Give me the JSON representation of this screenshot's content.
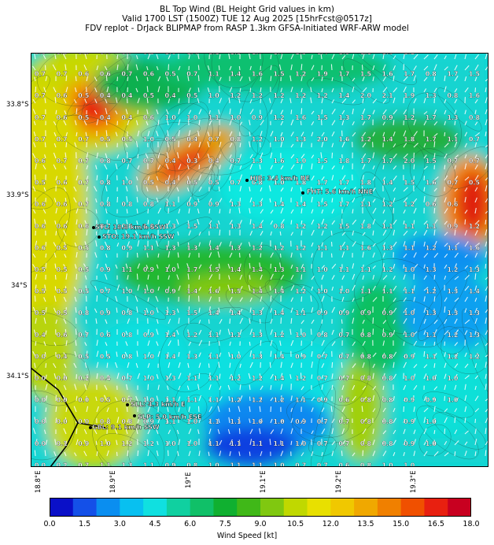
{
  "title": {
    "line1": "BL Top Wind (BL Height Grid values in km)",
    "line2": "Valid 1700 LST (1500Z) TUE 12 Aug 2025 [15hrFcst@0517z]",
    "line3": "FDV replot - DrJack BLIPMAP from RASP 1.3km GFSA-Initiated WRF-ARW model"
  },
  "y_axis": [
    "33.8°S",
    "33.9°S",
    "34°S",
    "34.1°S"
  ],
  "x_axis": [
    "18.8°E",
    "18.9°E",
    "19°E",
    "19.1°E",
    "19.2°E",
    "19.3°E"
  ],
  "stations": [
    {
      "code": "HJB",
      "label": "HJB: 3.4 km/h NE"
    },
    {
      "code": "FHT",
      "label": "FHT: 5.6 km/h NNE"
    },
    {
      "code": "STL",
      "label": "STL: 18.8 km/h SSW"
    },
    {
      "code": "STO",
      "label": "STO: 19.1 km/h SSW"
    },
    {
      "code": "SLL",
      "label": "SLL: 4.3 km/h E"
    },
    {
      "code": "SLP",
      "label": "SLP: 5.0 km/h ESE"
    },
    {
      "code": "GBL",
      "label": "GBL: 9.1 km/h SSW"
    }
  ],
  "bl_height_grid": [
    [
      0.8,
      0.8,
      0.6,
      0.4,
      0.7,
      0.8,
      1.0,
      1.4,
      1.1,
      1.3,
      1.7,
      1.7,
      1.3,
      1.4,
      1.5,
      1.1,
      1.6,
      1.2
    ],
    [
      0.7,
      0.7,
      0.6,
      0.6,
      0.7,
      0.6,
      0.5,
      0.7,
      1.1,
      1.4,
      1.6,
      1.5,
      1.2,
      1.9,
      1.7,
      1.5,
      1.6,
      1.7,
      0.8,
      1.7,
      1.5
    ],
    [
      0.7,
      0.6,
      0.5,
      0.4,
      0.4,
      0.5,
      0.4,
      0.5,
      1.0,
      1.2,
      1.2,
      1.2,
      1.2,
      1.2,
      1.4,
      2.0,
      2.1,
      1.9,
      1.3,
      0.8,
      1.6,
      1.2
    ],
    [
      0.7,
      0.6,
      0.5,
      0.4,
      0.4,
      0.6,
      1.0,
      1.0,
      1.1,
      1.0,
      0.9,
      1.2,
      1.6,
      1.5,
      1.3,
      1.7,
      0.9,
      1.2,
      1.7,
      1.3,
      0.8
    ],
    [
      0.7,
      0.7,
      0.7,
      0.5,
      0.5,
      1.0,
      0.5,
      0.4,
      0.7,
      0.8,
      1.2,
      1.0,
      1.3,
      2.0,
      1.6,
      1.2,
      1.4,
      1.8,
      1.7,
      1.1,
      0.7
    ],
    [
      0.6,
      0.7,
      0.7,
      0.8,
      0.7,
      0.7,
      0.4,
      0.3,
      0.4,
      0.7,
      1.3,
      1.6,
      1.0,
      1.5,
      1.8,
      1.7,
      1.7,
      2.0,
      1.5,
      0.7,
      0.7
    ],
    [
      0.5,
      0.6,
      0.7,
      0.8,
      1.0,
      0.5,
      0.4,
      0.5,
      0.5,
      0.7,
      0.8,
      1.0,
      1.8,
      1.7,
      1.7,
      1.8,
      1.4,
      1.5,
      1.6,
      0.7,
      0.5
    ],
    [
      0.6,
      0.6,
      0.7,
      0.8,
      0.8,
      0.8,
      1.1,
      0.9,
      0.9,
      1.3,
      1.3,
      1.4,
      1.4,
      1.5,
      1.7,
      1.1,
      1.2,
      1.2,
      0.6,
      0.6
    ],
    [
      0.6,
      0.6,
      0.6,
      0.7,
      0.8,
      1.0,
      1.3,
      1.5,
      1.1,
      1.3,
      1.4,
      0.8,
      1.2,
      1.2,
      1.5,
      1.8,
      1.1,
      1.1,
      1.1,
      0.9,
      1.2
    ],
    [
      0.6,
      0.5,
      0.5,
      0.8,
      0.9,
      1.1,
      1.3,
      1.3,
      1.4,
      1.3,
      1.2,
      1.2,
      1.2,
      1.1,
      1.1,
      1.6,
      1.3,
      1.1,
      1.2,
      1.1,
      1.6
    ],
    [
      0.5,
      0.5,
      0.5,
      0.9,
      1.1,
      0.9,
      1.0,
      1.7,
      1.5,
      1.4,
      1.4,
      1.3,
      1.1,
      1.0,
      1.1,
      1.1,
      1.2,
      1.0,
      1.3,
      1.2,
      1.3
    ],
    [
      0.5,
      0.5,
      0.5,
      0.7,
      1.0,
      1.0,
      0.9,
      1.4,
      1.6,
      1.5,
      1.4,
      1.4,
      1.2,
      1.0,
      1.0,
      1.1,
      1.1,
      1.1,
      1.2,
      1.3,
      1.4
    ],
    [
      0.5,
      0.5,
      0.8,
      0.9,
      0.8,
      1.0,
      1.3,
      1.5,
      1.4,
      1.4,
      1.3,
      1.4,
      1.1,
      0.9,
      0.9,
      0.9,
      0.9,
      1.0,
      1.3,
      1.3,
      1.3
    ],
    [
      0.4,
      0.6,
      0.7,
      0.6,
      0.8,
      0.9,
      1.4,
      1.2,
      1.1,
      1.1,
      1.3,
      1.2,
      1.0,
      0.8,
      0.7,
      0.8,
      0.9,
      1.0,
      1.1,
      1.2,
      1.3
    ],
    [
      0.0,
      0.4,
      0.5,
      0.5,
      0.8,
      1.0,
      1.4,
      1.3,
      1.1,
      1.0,
      1.3,
      1.4,
      0.9,
      0.7,
      0.7,
      0.8,
      0.8,
      0.9,
      1.1,
      1.2,
      1.2
    ],
    [
      0.0,
      0.0,
      0.2,
      0.4,
      0.7,
      1.0,
      1.3,
      1.1,
      1.1,
      1.2,
      1.2,
      1.4,
      1.2,
      0.7,
      0.7,
      0.8,
      0.8,
      1.0,
      1.0,
      1.0
    ],
    [
      0.0,
      0.0,
      0.0,
      0.5,
      0.7,
      1.0,
      1.1,
      1.1,
      1.1,
      1.2,
      1.2,
      1.2,
      1.1,
      0.9,
      0.6,
      0.8,
      0.8,
      0.9,
      0.9,
      1.0
    ],
    [
      0.0,
      0.0,
      0.0,
      0.8,
      0.8,
      0.9,
      1.1,
      1.0,
      1.1,
      1.1,
      1.0,
      1.0,
      0.9,
      0.7,
      0.7,
      0.8,
      0.8,
      0.9,
      1.0
    ],
    [
      0.0,
      0.1,
      0.9,
      1.0,
      1.2,
      1.2,
      1.0,
      1.0,
      1.1,
      1.1,
      1.1,
      1.1,
      1.0,
      0.7,
      0.7,
      0.8,
      0.8,
      0.9,
      1.0
    ],
    [
      0.0,
      0.2,
      0.7,
      1.1,
      1.3,
      1.1,
      0.9,
      0.8,
      1.0,
      1.1,
      1.1,
      1.0,
      0.7,
      0.7,
      0.6,
      0.8,
      1.0,
      1.0
    ]
  ],
  "colorbar": {
    "title": "Wind Speed [kt]",
    "ticks": [
      "0.0",
      "1.5",
      "3.0",
      "4.5",
      "6.0",
      "7.5",
      "9.0",
      "10.5",
      "12.0",
      "13.5",
      "15.0",
      "16.5",
      "18.0"
    ],
    "colors": [
      "#0a10c8",
      "#1450e8",
      "#0a8ef0",
      "#08c0f0",
      "#10e0e0",
      "#10d0a0",
      "#10c068",
      "#10b030",
      "#40b818",
      "#80c810",
      "#c0d800",
      "#e8e000",
      "#f0c800",
      "#f0a800",
      "#f08000",
      "#f05000",
      "#e82010",
      "#c80020"
    ]
  },
  "legend_field": "wind-field"
}
